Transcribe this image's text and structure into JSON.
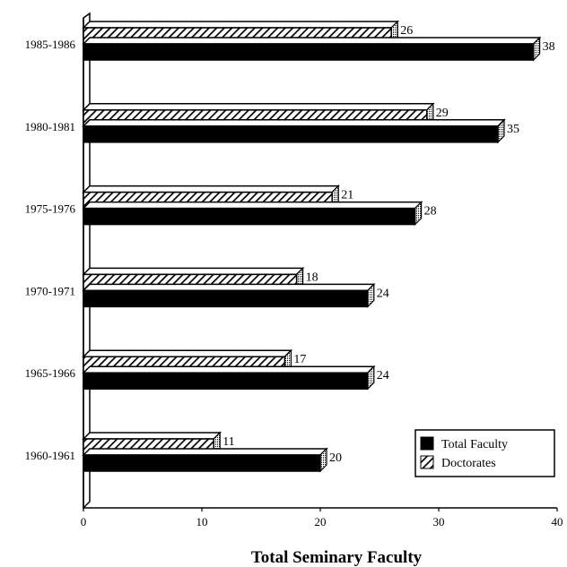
{
  "chart_data": {
    "type": "bar",
    "orientation": "horizontal",
    "style": "3d",
    "categories": [
      "1985-1986",
      "1980-1981",
      "1975-1976",
      "1970-1971",
      "1965-1966",
      "1960-1961"
    ],
    "series": [
      {
        "name": "Doctorates",
        "values": [
          26,
          29,
          21,
          18,
          17,
          11
        ],
        "fill": "hatched"
      },
      {
        "name": "Total Faculty",
        "values": [
          38,
          35,
          28,
          24,
          24,
          20
        ],
        "fill": "solid"
      }
    ],
    "xlabel": "Total Seminary Faculty",
    "xlim": [
      0,
      40
    ],
    "xticks": [
      0,
      10,
      20,
      30,
      40
    ],
    "grid": false,
    "legend_position": "bottom-right",
    "legend_entries": [
      "Total Faculty",
      "Doctorates"
    ]
  }
}
